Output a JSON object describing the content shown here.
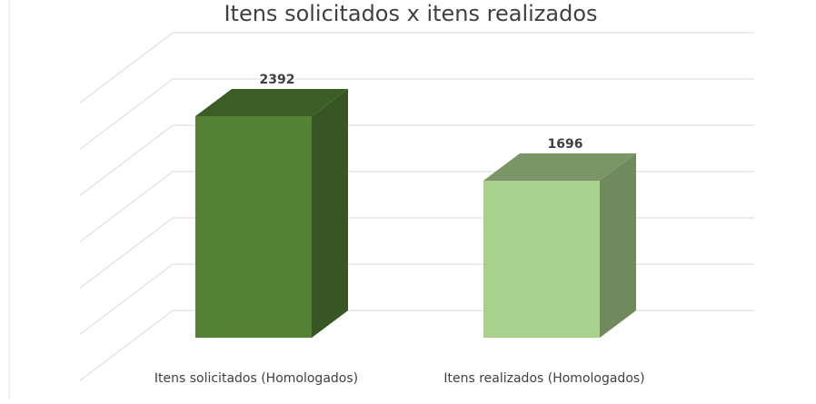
{
  "chart_data": {
    "type": "bar3d",
    "title": "Itens solicitados x itens realizados",
    "categories": [
      "Itens solicitados (Homologados)",
      "Itens realizados (Homologados)"
    ],
    "values": [
      2392,
      1696
    ],
    "colors": [
      "#548235",
      "#a9d18e"
    ],
    "ylim": [
      0,
      3000
    ],
    "yticks": [
      0,
      500,
      1000,
      1500,
      2000,
      2500,
      3000
    ],
    "grid": true
  }
}
